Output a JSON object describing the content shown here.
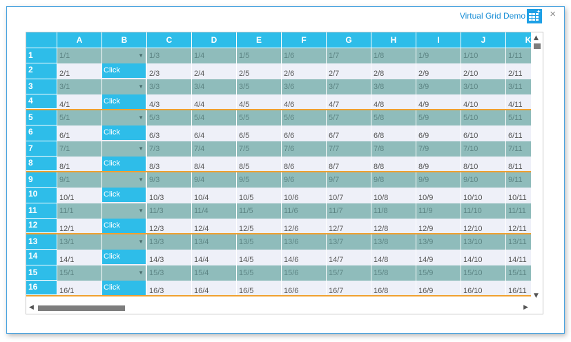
{
  "window": {
    "title": "Virtual Grid Demo",
    "close_label": "×"
  },
  "grid": {
    "columns": [
      "A",
      "B",
      "C",
      "D",
      "E",
      "F",
      "G",
      "H",
      "I",
      "J",
      "K"
    ],
    "first_col_index": 1,
    "button_label": "Click",
    "visible_rows": 16,
    "rows_with_bottom_highlight": [
      4,
      8,
      12,
      16
    ],
    "colors": {
      "header": "#2ebde9",
      "odd_row": "#8fbcbb",
      "even_row": "#eef0f8",
      "highlight": "#f0a030"
    }
  },
  "scroll": {
    "up": "▲",
    "down": "▼",
    "left": "◀",
    "right": "▶"
  }
}
